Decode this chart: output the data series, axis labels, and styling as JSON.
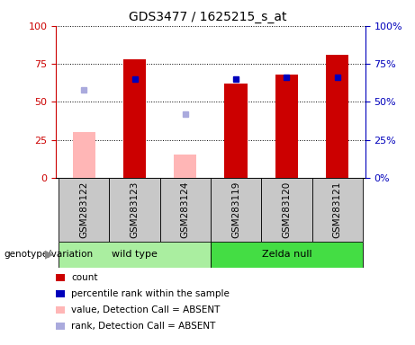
{
  "title": "GDS3477 / 1625215_s_at",
  "categories": [
    "GSM283122",
    "GSM283123",
    "GSM283124",
    "GSM283119",
    "GSM283120",
    "GSM283121"
  ],
  "group_labels": [
    "wild type",
    "Zelda null"
  ],
  "red_bars": [
    null,
    78,
    null,
    62,
    68,
    81
  ],
  "pink_bars": [
    30,
    null,
    15,
    null,
    null,
    null
  ],
  "blue_squares": [
    null,
    65,
    null,
    65,
    66,
    66
  ],
  "light_blue_squares": [
    58,
    null,
    42,
    null,
    null,
    null
  ],
  "ylim": [
    0,
    100
  ],
  "yticks": [
    0,
    25,
    50,
    75,
    100
  ],
  "bar_width": 0.45,
  "red_color": "#CC0000",
  "pink_color": "#FFB6B6",
  "blue_color": "#0000BB",
  "light_blue_color": "#AAAADD",
  "left_axis_color": "#CC0000",
  "right_axis_color": "#0000BB",
  "wt_color": "#AAEEA0",
  "zn_color": "#44DD44",
  "label_bg": "#C8C8C8",
  "genotype_label": "genotype/variation",
  "legend_items": [
    {
      "label": "count",
      "color": "#CC0000"
    },
    {
      "label": "percentile rank within the sample",
      "color": "#0000BB"
    },
    {
      "label": "value, Detection Call = ABSENT",
      "color": "#FFB6B6"
    },
    {
      "label": "rank, Detection Call = ABSENT",
      "color": "#AAAADD"
    }
  ]
}
